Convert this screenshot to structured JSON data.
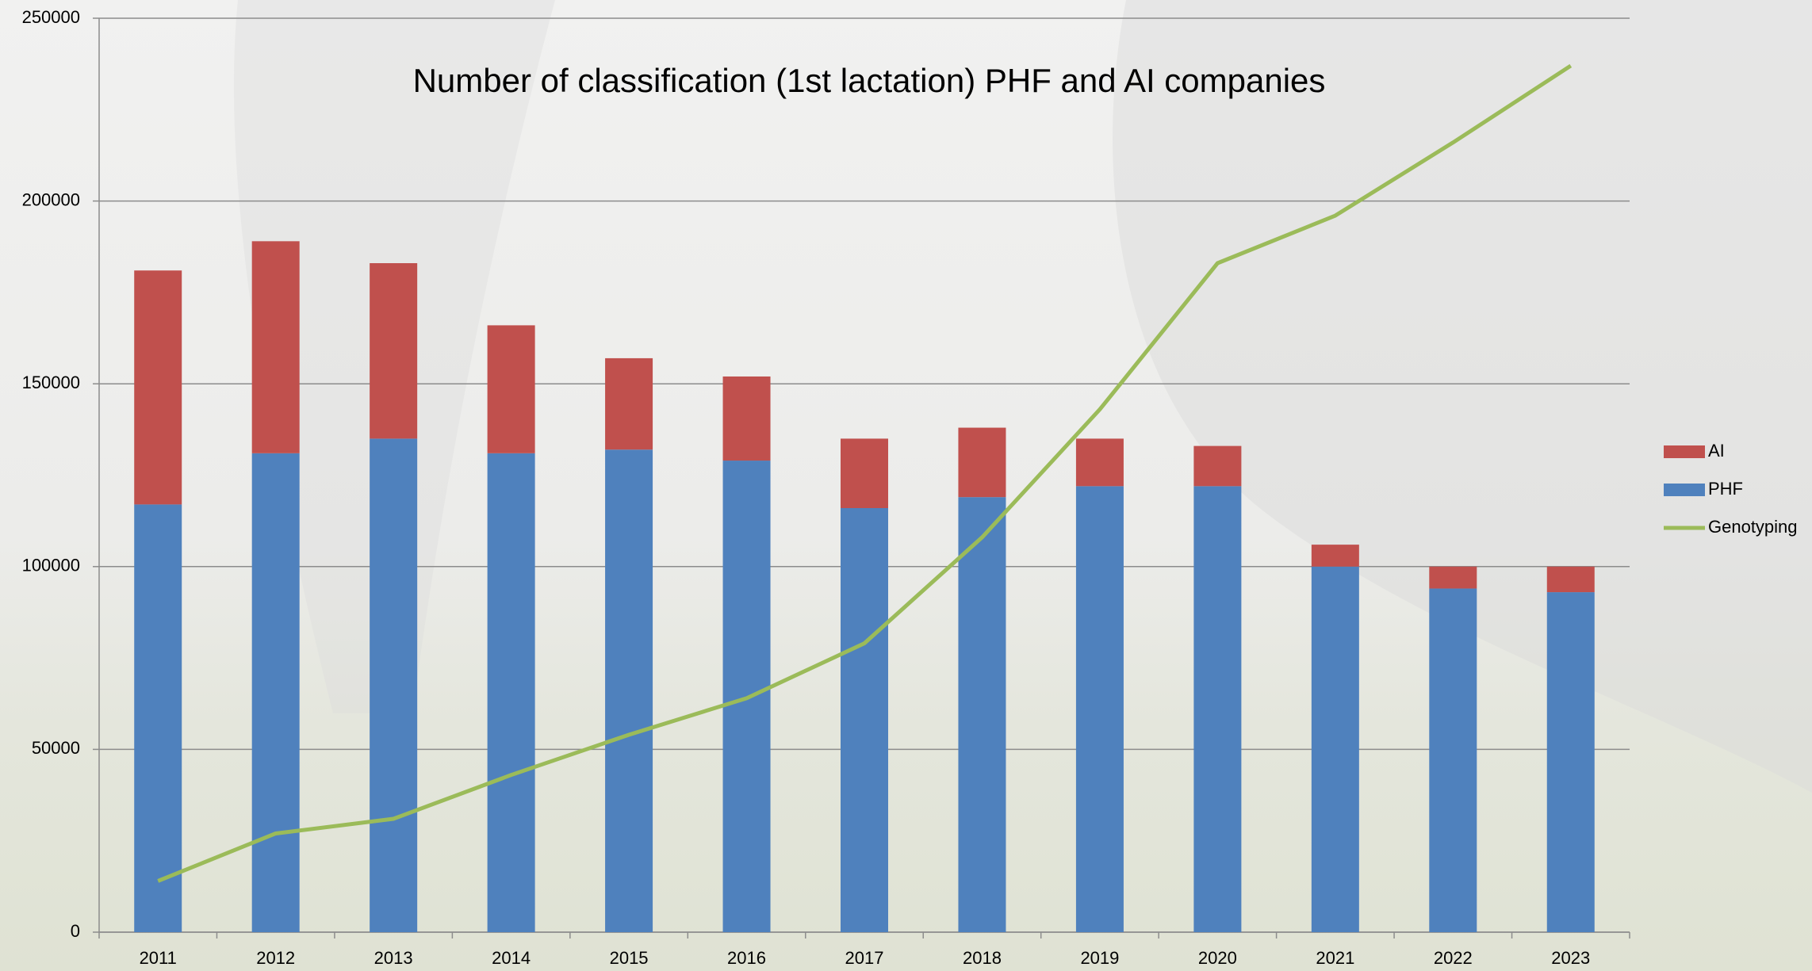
{
  "chart_data": {
    "type": "bar-line",
    "title": "Number of classification (1st lactation) PHF and AI companies",
    "categories": [
      "2011",
      "2012",
      "2013",
      "2014",
      "2015",
      "2016",
      "2017",
      "2018",
      "2019",
      "2020",
      "2021",
      "2022",
      "2023"
    ],
    "series": [
      {
        "name": "PHF",
        "color": "#4f81bd",
        "type": "bar",
        "values": [
          117000,
          131000,
          135000,
          131000,
          132000,
          129000,
          116000,
          119000,
          122000,
          122000,
          100000,
          94000,
          93000
        ]
      },
      {
        "name": "AI",
        "color": "#c0504d",
        "type": "bar",
        "values": [
          64000,
          58000,
          48000,
          35000,
          25000,
          23000,
          19000,
          19000,
          13000,
          11000,
          6000,
          6000,
          7000
        ]
      },
      {
        "name": "Genotyping",
        "color": "#9bbb59",
        "type": "line",
        "values": [
          14000,
          27000,
          31000,
          43000,
          54000,
          64000,
          79000,
          108000,
          143000,
          183000,
          196000,
          216000,
          237000
        ]
      }
    ],
    "ylim": [
      0,
      250000
    ],
    "yticks": [
      0,
      50000,
      100000,
      150000,
      200000,
      250000
    ],
    "grid": true
  }
}
